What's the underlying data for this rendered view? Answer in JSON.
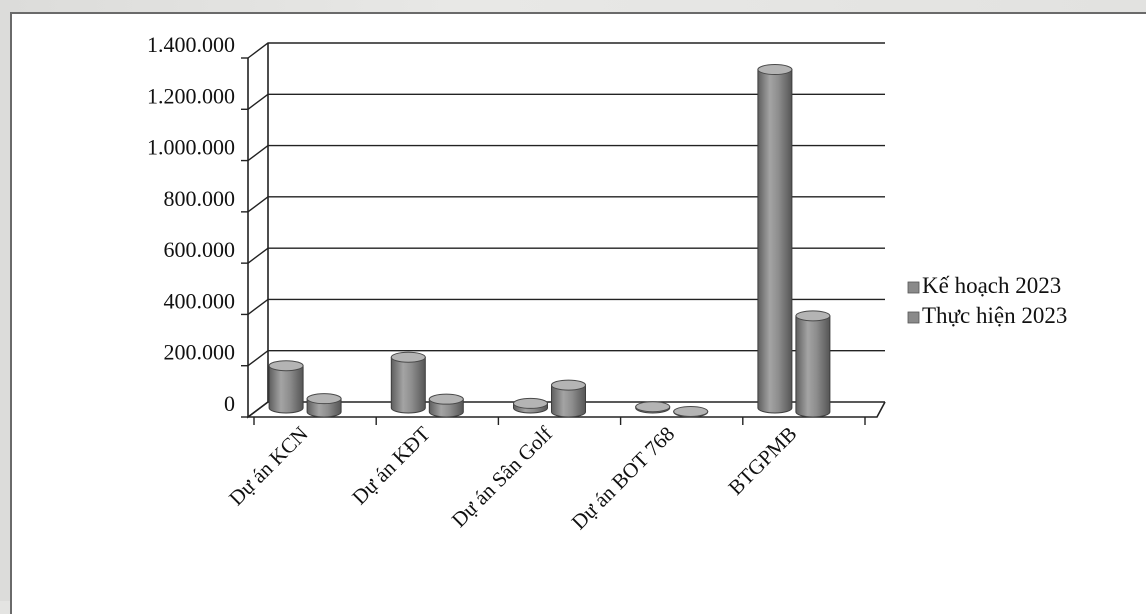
{
  "chart_data": {
    "type": "bar",
    "title": "",
    "xlabel": "",
    "ylabel": "",
    "categories": [
      "Dự án KCN",
      "Dự án KĐT",
      "Dự án Sân Golf",
      "Dự án BOT 768",
      "BTGPMB"
    ],
    "series": [
      {
        "name": "Kế hoạch 2023",
        "values": [
          165000,
          198000,
          18000,
          5000,
          1320000
        ]
      },
      {
        "name": "Thực hiện 2023",
        "values": [
          52000,
          50000,
          105000,
          2000,
          375000
        ]
      }
    ],
    "ylim": [
      0,
      1400000
    ],
    "yticks": [
      "0",
      "200.000",
      "400.000",
      "600.000",
      "800.000",
      "1.000.000",
      "1.200.000",
      "1.400.000"
    ],
    "grid": true,
    "legend": "right",
    "style": "3d-cylinder",
    "colors": {
      "series": [
        "#8a8a8a",
        "#8a8a8a"
      ],
      "grid": "#222222"
    }
  }
}
